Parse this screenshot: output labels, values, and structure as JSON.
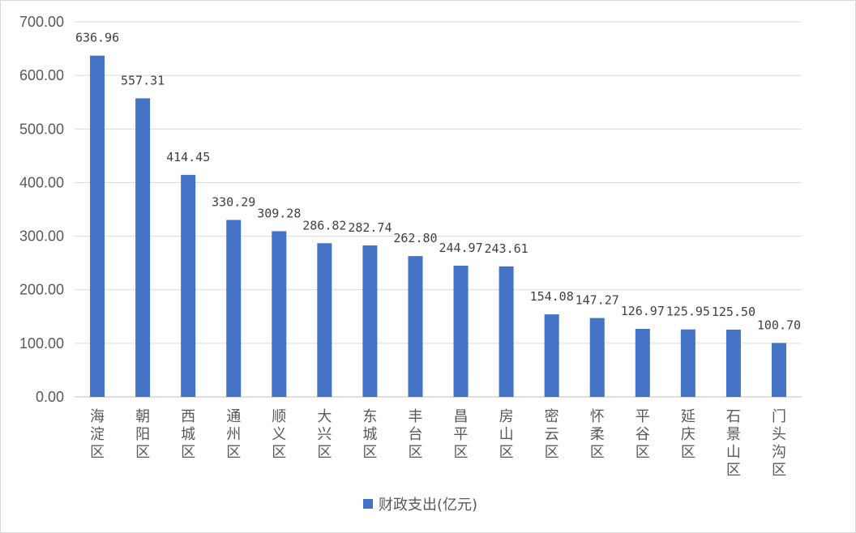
{
  "chart_data": {
    "type": "bar",
    "categories": [
      "海淀区",
      "朝阳区",
      "西城区",
      "通州区",
      "顺义区",
      "大兴区",
      "东城区",
      "丰台区",
      "昌平区",
      "房山区",
      "密云区",
      "怀柔区",
      "平谷区",
      "延庆区",
      "石景山区",
      "门头沟区"
    ],
    "series": [
      {
        "name": "财政支出(亿元)",
        "values": [
          636.96,
          557.31,
          414.45,
          330.29,
          309.28,
          286.82,
          282.74,
          262.8,
          244.97,
          243.61,
          154.08,
          147.27,
          126.97,
          125.95,
          125.5,
          100.7
        ],
        "labels": [
          "636.96",
          "557.31",
          "414.45",
          "330.29",
          "309.28",
          "286.82",
          "282.74",
          "262.80",
          "244.97",
          "243.61",
          "154.08",
          "147.27",
          "126.97",
          "125.95",
          "125.50",
          "100.70"
        ],
        "color": "#4472c4"
      }
    ],
    "yticks": [
      "0.00",
      "100.00",
      "200.00",
      "300.00",
      "400.00",
      "500.00",
      "600.00",
      "700.00"
    ],
    "ylim": [
      0,
      700
    ],
    "grid": true,
    "legend_position": "bottom"
  },
  "colors": {
    "bar": "#4472c4",
    "grid": "#d9d9d9",
    "text": "#595959"
  }
}
